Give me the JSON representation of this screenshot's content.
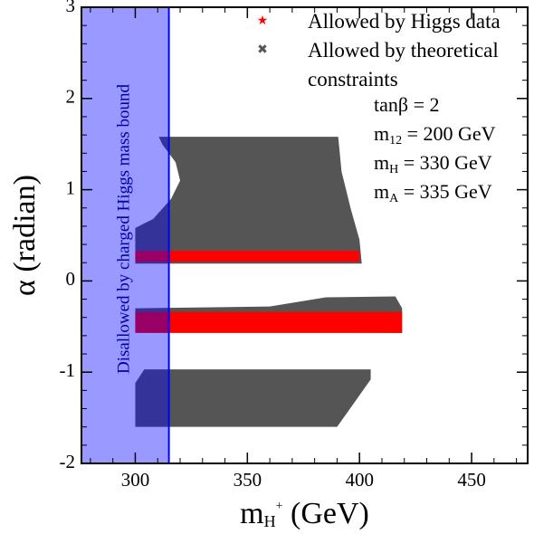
{
  "chart_data": {
    "type": "scatter",
    "x_label": {
      "main": "m",
      "sub": "H",
      "sup": "+",
      "rest": " (GeV)"
    },
    "y_label": "α (radian)",
    "xlim": [
      276,
      475
    ],
    "ylim": [
      -2,
      3
    ],
    "xticks": [
      300,
      350,
      400,
      450
    ],
    "yticks": [
      -2,
      -1,
      0,
      1,
      2,
      3
    ],
    "xminorticks": [
      280,
      290,
      310,
      320,
      330,
      340,
      360,
      370,
      380,
      390,
      410,
      420,
      430,
      440,
      460,
      470
    ],
    "yminorticks": [
      -1.8,
      -1.6,
      -1.4,
      -1.2,
      -0.8,
      -0.6,
      -0.4,
      -0.2,
      0.2,
      0.4,
      0.6,
      0.8,
      1.2,
      1.4,
      1.6,
      1.8,
      2.2,
      2.4,
      2.6,
      2.8
    ],
    "series": [
      {
        "name": "Allowed by Higgs data",
        "color": "#ff0000",
        "marker": "star",
        "regions": [
          {
            "x": [
              300,
              400,
              400,
              300
            ],
            "y": [
              0.33,
              0.33,
              0.21,
              0.21
            ]
          },
          {
            "x": [
              300,
              419,
              419,
              300
            ],
            "y": [
              -0.34,
              -0.34,
              -0.57,
              -0.57
            ]
          }
        ]
      },
      {
        "name": "Allowed by theoretical constraints",
        "color": "#555555",
        "marker": "x",
        "regions": [
          {
            "x": [
              310.5,
              390.5,
              392,
              396,
              400,
              401,
              300,
              300,
              308,
              316,
              320,
              318,
              312
            ],
            "y": [
              1.58,
              1.58,
              1.2,
              0.8,
              0.45,
              0.19,
              0.19,
              0.58,
              0.68,
              0.9,
              1.1,
              1.3,
              1.5
            ]
          },
          {
            "x": [
              300,
              360,
              385,
              416,
              419,
              419,
              300
            ],
            "y": [
              -0.3,
              -0.28,
              -0.18,
              -0.17,
              -0.3,
              -0.57,
              -0.55
            ]
          },
          {
            "x": [
              304,
              405,
              405,
              390,
              300,
              300
            ],
            "y": [
              -0.97,
              -0.97,
              -1.08,
              -1.6,
              -1.6,
              -1.12
            ]
          }
        ]
      }
    ],
    "excluded": {
      "x_max": 315,
      "color": "#0000ff",
      "label": "Disallowed by charged Higgs mass bound"
    },
    "parameters": [
      {
        "main": "tanβ = 2"
      },
      {
        "main": "m",
        "sub": "12",
        "rest": " = 200 GeV"
      },
      {
        "main": "m",
        "sub": "H",
        "rest": " = 330 GeV"
      },
      {
        "main": "m",
        "sub": "A",
        "rest": " = 335 GeV"
      }
    ]
  }
}
